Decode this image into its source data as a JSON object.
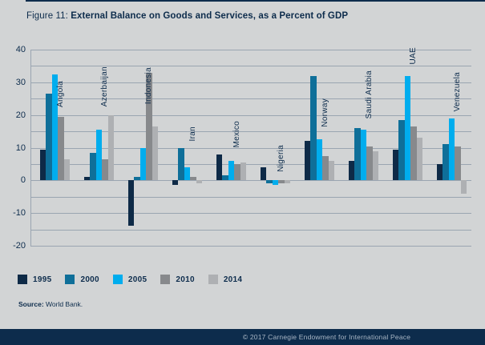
{
  "page": {
    "title_prefix": "Figure 11: ",
    "title_bold": "External Balance on Goods and Services, as a Percent of GDP",
    "source_label": "Source:",
    "source_value": "World Bank.",
    "footer_text": "© 2017 Carnegie Endowment for International Peace"
  },
  "colors": {
    "background": "#d2d4d5",
    "navy_text": "#0d2c4c",
    "gridline": "#9aa5b1",
    "footer_bar": "#0d2c4c",
    "footer_text": "#a9b6c5"
  },
  "chart_data": {
    "type": "bar",
    "title": "External Balance on Goods and Services, as a Percent of GDP",
    "ylabel": "Percent of GDP",
    "categories": [
      "Angola",
      "Azerbaijan",
      "Indonesia",
      "Iran",
      "Mexico",
      "Nigeria",
      "Norway",
      "Saudi Arabia",
      "UAE",
      "Venezuela"
    ],
    "series": [
      {
        "name": "1995",
        "color": "#0e2a47",
        "values": [
          9.5,
          1,
          -14,
          -1.5,
          8,
          4,
          12,
          6,
          9.5,
          5
        ]
      },
      {
        "name": "2000",
        "color": "#0f6f99",
        "values": [
          26.5,
          8.5,
          1,
          10,
          1.5,
          -1,
          32,
          16,
          18.5,
          11
        ]
      },
      {
        "name": "2005",
        "color": "#00adee",
        "values": [
          32.5,
          15.5,
          10,
          4,
          6,
          -1.5,
          12.5,
          15.5,
          32,
          19
        ]
      },
      {
        "name": "2010",
        "color": "#87898c",
        "values": [
          19.5,
          6.5,
          33,
          1,
          5,
          -1,
          7.5,
          10.5,
          16.5,
          10.5
        ]
      },
      {
        "name": "2014",
        "color": "#aeb0b3",
        "values": [
          6.5,
          20,
          16.5,
          -1,
          5.5,
          -1,
          6,
          9,
          13,
          -4
        ]
      }
    ],
    "ylim": [
      -20,
      40
    ],
    "y_ticks": [
      40,
      30,
      20,
      10,
      0,
      -10,
      -20
    ],
    "grid_step": 5,
    "grid": true,
    "legend_position": "bottom",
    "category_label_offsets_units": [
      22.3,
      22.5,
      23.3,
      12,
      10,
      2.7,
      16.4,
      18.9,
      35.5,
      21
    ]
  }
}
